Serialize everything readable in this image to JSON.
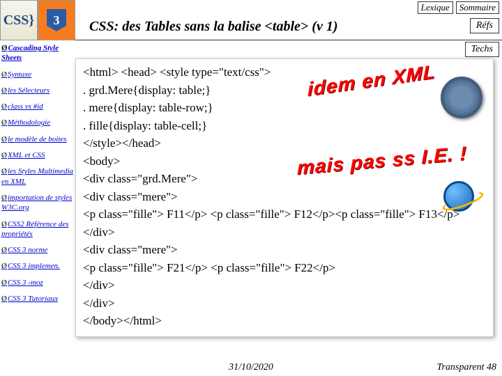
{
  "nav": {
    "lexique": "Lexique",
    "sommaire": "Sommaire",
    "refs": "Réfs",
    "techs": "Techs"
  },
  "title": "CSS: des Tables sans la balise <table> (v 1)",
  "logo1": "CSS}",
  "logo2": "3",
  "wordart1": "idem en XML",
  "wordart2": "mais pas ss I.E. !",
  "sidebar": {
    "i0": "Cascading Style Sheets",
    "i1": "Syntaxe",
    "i2": "les Sélecteurs",
    "i3": "class vs #id",
    "i4": "Méthodologie",
    "i5": "le modèle de boites",
    "i6": "XML et CSS",
    "i7": "les Styles Multimedia en XML",
    "i8": "importation de styles W3C.org",
    "i9": "CSS2 Référence des propriétés",
    "i10": "CSS 3 norme",
    "i11": "CSS 3 implemen.",
    "i12": "CSS 3 -moz",
    "i13": "CSS 3 Tutoriaux"
  },
  "code": {
    "l1": "<html> <head> <style type=\"text/css\">",
    "l2": ". grd.Mere{display: table;}",
    "l3": ". mere{display: table-row;}",
    "l4": ". fille{display: table-cell;}",
    "l5": "</style></head>",
    "l6": "<body>",
    "l7": "<div class=\"grd.Mere\">",
    "l8": "<div class=\"mere\">",
    "l9": "<p class=\"fille\"> F11</p> <p class=\"fille\"> F12</p><p class=\"fille\"> F13</p>",
    "l10": "</div>",
    "l11": "<div class=\"mere\">",
    "l12": "<p class=\"fille\"> F21</p> <p class=\"fille\"> F22</p>",
    "l13": "</div>",
    "l14": "</div>",
    "l15": "</body></html>"
  },
  "footer": {
    "date": "31/10/2020",
    "page": "Transparent 48"
  }
}
